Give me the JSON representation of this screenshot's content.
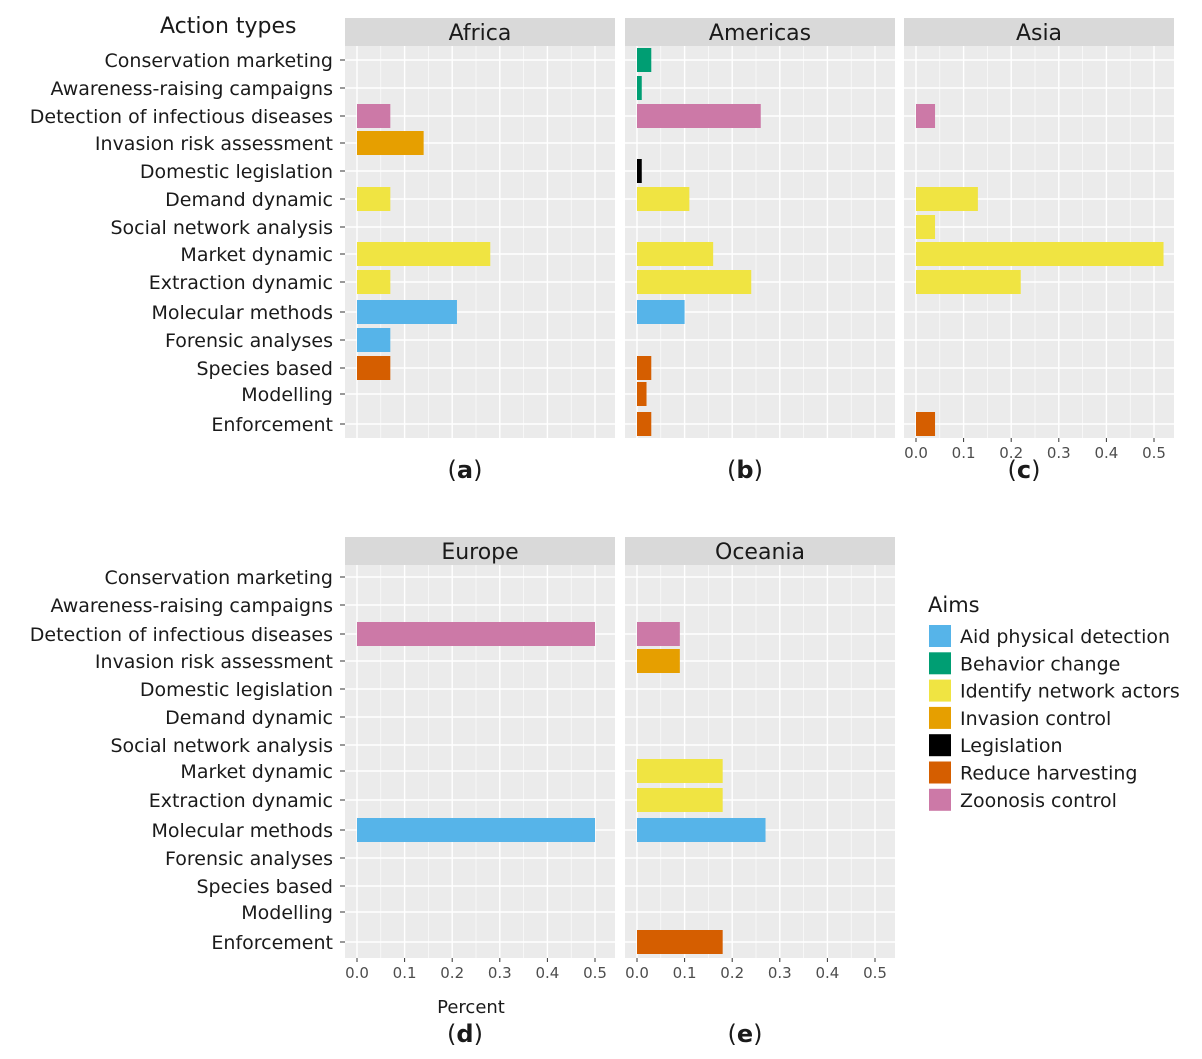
{
  "y_axis_title": "Action types",
  "x_axis_label": "Percent",
  "categories": [
    "Conservation marketing",
    "Awareness-raising campaigns",
    "Detection of infectious diseases",
    "Invasion risk assessment",
    "Domestic legislation",
    "Demand dynamic",
    "Social network analysis",
    "Market dynamic",
    "Extraction dynamic",
    "Molecular methods",
    "Forensic analyses",
    "Species based",
    "Modelling",
    "Enforcement"
  ],
  "x_ticks": [
    "0.0",
    "0.1",
    "0.2",
    "0.3",
    "0.4",
    "0.5"
  ],
  "legend": {
    "title": "Aims",
    "items": [
      {
        "label": "Aid physical detection",
        "color": "#56b4e9"
      },
      {
        "label": "Behavior change",
        "color": "#009e73"
      },
      {
        "label": "Identify network actors",
        "color": "#f0e442"
      },
      {
        "label": "Invasion control",
        "color": "#e69f00"
      },
      {
        "label": "Legislation",
        "color": "#000000"
      },
      {
        "label": "Reduce harvesting",
        "color": "#d55e00"
      },
      {
        "label": "Zoonosis control",
        "color": "#cc79a7"
      }
    ]
  },
  "chart_data": [
    {
      "type": "bar",
      "title": "Africa",
      "panel_label": "a",
      "xlim": [
        0,
        0.55
      ],
      "bars": [
        {
          "category": "Detection of infectious diseases",
          "aim": "Zoonosis control",
          "value": 0.07
        },
        {
          "category": "Invasion risk assessment",
          "aim": "Invasion control",
          "value": 0.14
        },
        {
          "category": "Demand dynamic",
          "aim": "Identify network actors",
          "value": 0.07
        },
        {
          "category": "Market dynamic",
          "aim": "Identify network actors",
          "value": 0.28
        },
        {
          "category": "Extraction dynamic",
          "aim": "Identify network actors",
          "value": 0.07
        },
        {
          "category": "Molecular methods",
          "aim": "Aid physical detection",
          "value": 0.21
        },
        {
          "category": "Forensic analyses",
          "aim": "Aid physical detection",
          "value": 0.07
        },
        {
          "category": "Species based",
          "aim": "Reduce harvesting",
          "value": 0.07
        }
      ]
    },
    {
      "type": "bar",
      "title": "Americas",
      "panel_label": "b",
      "xlim": [
        0,
        0.55
      ],
      "bars": [
        {
          "category": "Conservation marketing",
          "aim": "Behavior change",
          "value": 0.03
        },
        {
          "category": "Awareness-raising campaigns",
          "aim": "Behavior change",
          "value": 0.01
        },
        {
          "category": "Detection of infectious diseases",
          "aim": "Zoonosis control",
          "value": 0.26
        },
        {
          "category": "Domestic legislation",
          "aim": "Legislation",
          "value": 0.01
        },
        {
          "category": "Demand dynamic",
          "aim": "Identify network actors",
          "value": 0.11
        },
        {
          "category": "Market dynamic",
          "aim": "Identify network actors",
          "value": 0.16
        },
        {
          "category": "Extraction dynamic",
          "aim": "Identify network actors",
          "value": 0.24
        },
        {
          "category": "Molecular methods",
          "aim": "Aid physical detection",
          "value": 0.1
        },
        {
          "category": "Species based",
          "aim": "Reduce harvesting",
          "value": 0.03
        },
        {
          "category": "Modelling",
          "aim": "Reduce harvesting",
          "value": 0.02
        },
        {
          "category": "Enforcement",
          "aim": "Reduce harvesting",
          "value": 0.03
        }
      ]
    },
    {
      "type": "bar",
      "title": "Asia",
      "panel_label": "c",
      "xlim": [
        0,
        0.55
      ],
      "bars": [
        {
          "category": "Detection of infectious diseases",
          "aim": "Zoonosis control",
          "value": 0.04
        },
        {
          "category": "Demand dynamic",
          "aim": "Identify network actors",
          "value": 0.13
        },
        {
          "category": "Social network analysis",
          "aim": "Identify network actors",
          "value": 0.04
        },
        {
          "category": "Market dynamic",
          "aim": "Identify network actors",
          "value": 0.52
        },
        {
          "category": "Extraction dynamic",
          "aim": "Identify network actors",
          "value": 0.22
        },
        {
          "category": "Enforcement",
          "aim": "Reduce harvesting",
          "value": 0.04
        }
      ]
    },
    {
      "type": "bar",
      "title": "Europe",
      "panel_label": "d",
      "xlim": [
        0,
        0.55
      ],
      "bars": [
        {
          "category": "Detection of infectious diseases",
          "aim": "Zoonosis control",
          "value": 0.5
        },
        {
          "category": "Molecular methods",
          "aim": "Aid physical detection",
          "value": 0.5
        }
      ]
    },
    {
      "type": "bar",
      "title": "Oceania",
      "panel_label": "e",
      "xlim": [
        0,
        0.55
      ],
      "bars": [
        {
          "category": "Detection of infectious diseases",
          "aim": "Zoonosis control",
          "value": 0.09
        },
        {
          "category": "Invasion risk assessment",
          "aim": "Invasion control",
          "value": 0.09
        },
        {
          "category": "Market dynamic",
          "aim": "Identify network actors",
          "value": 0.18
        },
        {
          "category": "Extraction dynamic",
          "aim": "Identify network actors",
          "value": 0.18
        },
        {
          "category": "Molecular methods",
          "aim": "Aid physical detection",
          "value": 0.27
        },
        {
          "category": "Enforcement",
          "aim": "Reduce harvesting",
          "value": 0.18
        }
      ]
    }
  ]
}
